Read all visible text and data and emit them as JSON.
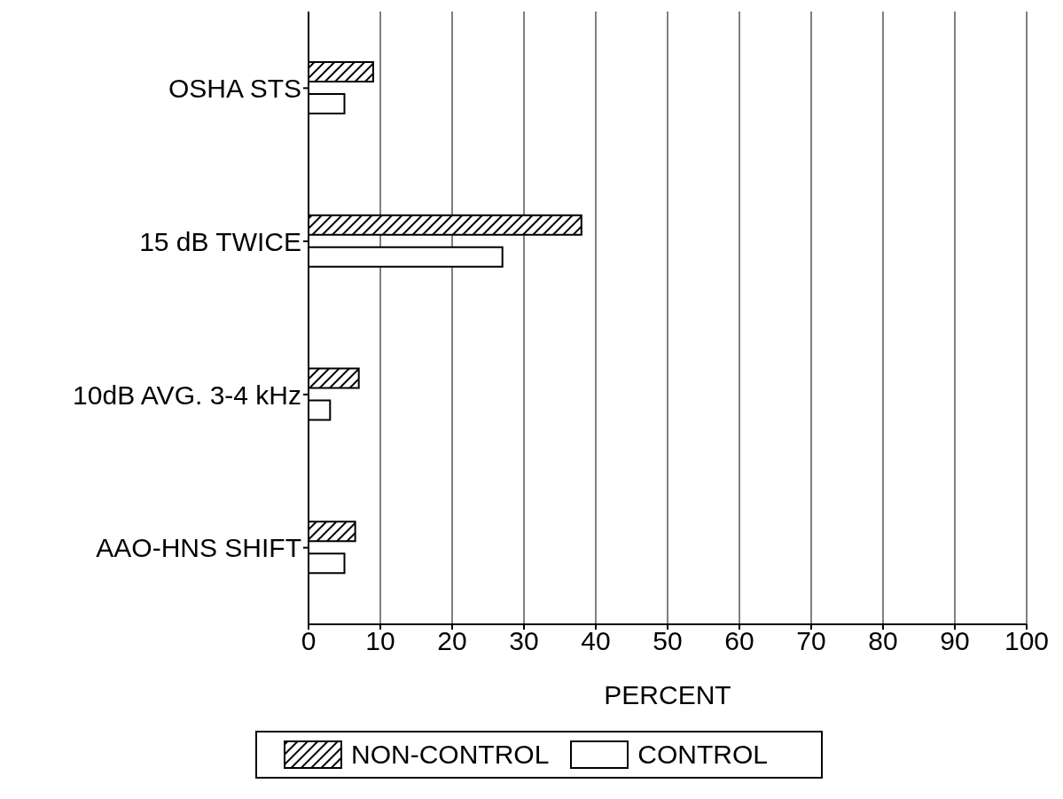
{
  "chart_data": {
    "type": "bar",
    "orientation": "horizontal",
    "xlabel": "PERCENT",
    "categories": [
      "OSHA STS",
      "15 dB TWICE",
      "10dB AVG. 3-4 kHz",
      "AAO-HNS SHIFT"
    ],
    "series": [
      {
        "name": "NON-CONTROL",
        "color": "#000000",
        "values": [
          9,
          38,
          7,
          6.5
        ]
      },
      {
        "name": "CONTROL",
        "color": "#ffffff",
        "values": [
          5,
          27,
          3,
          5
        ]
      }
    ],
    "xlim": [
      0,
      100
    ],
    "xticks": [
      0,
      10,
      20,
      30,
      40,
      50,
      60,
      70,
      80,
      90,
      100
    ],
    "grid": "x",
    "legend": "bottom"
  }
}
